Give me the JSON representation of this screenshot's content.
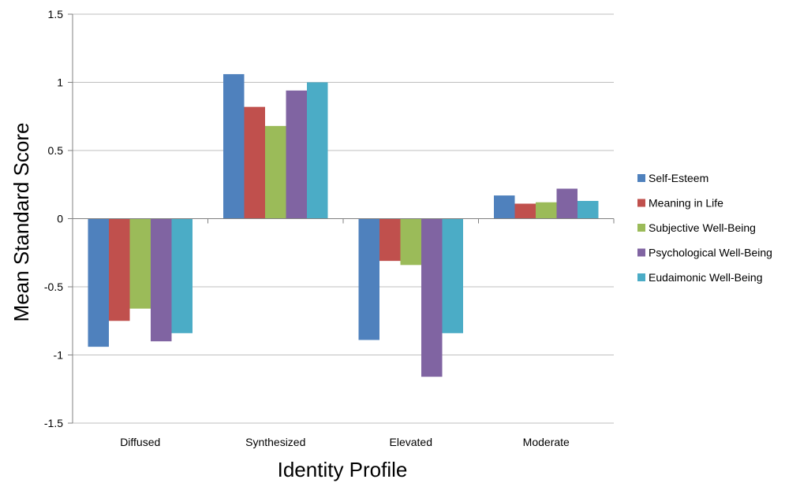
{
  "chart_data": {
    "type": "bar",
    "title": "",
    "xlabel": "Identity Profile",
    "ylabel": "Mean Standard Score",
    "ylim": [
      -1.5,
      1.5
    ],
    "yticks": [
      "1.5",
      "1",
      "0.5",
      "0",
      "-0.5",
      "-1",
      "-1.5"
    ],
    "grid": true,
    "legend_position": "right",
    "categories": [
      "Diffused",
      "Synthesized",
      "Elevated",
      "Moderate"
    ],
    "series": [
      {
        "name": "Self-Esteem",
        "color": "#4F81BD",
        "values": [
          -0.94,
          1.06,
          -0.89,
          0.17
        ]
      },
      {
        "name": "Meaning in Life",
        "color": "#C0504D",
        "values": [
          -0.75,
          0.82,
          -0.31,
          0.11
        ]
      },
      {
        "name": "Subjective Well-Being",
        "color": "#9BBB59",
        "values": [
          -0.66,
          0.68,
          -0.34,
          0.12
        ]
      },
      {
        "name": "Psychological Well-Being",
        "color": "#8064A2",
        "values": [
          -0.9,
          0.94,
          -1.16,
          0.22
        ]
      },
      {
        "name": "Eudaimonic Well-Being",
        "color": "#4BACC6",
        "values": [
          -0.84,
          1.0,
          -0.84,
          0.13
        ]
      }
    ]
  }
}
